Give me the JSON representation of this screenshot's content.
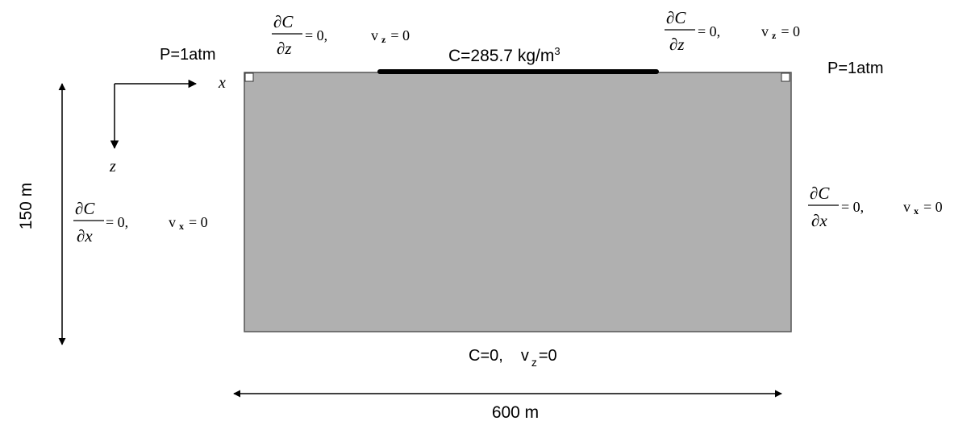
{
  "domain_colors": {
    "domain_fill": "#b0b0b0",
    "domain_stroke": "#555555",
    "source_strip": "#000000",
    "arrow": "#000000"
  },
  "top_left": {
    "pressure": "P=1atm",
    "dC": "∂C",
    "dz": "∂z",
    "cond_rest": "= 0,",
    "vel": "v",
    "vel_sub": "z",
    "vel_rest": "= 0"
  },
  "top_right": {
    "pressure": "P=1atm",
    "dC": "∂C",
    "dz": "∂z",
    "cond_rest": "= 0,",
    "vel": "v",
    "vel_sub": "z",
    "vel_rest": "= 0"
  },
  "source": {
    "label": "C=285.7 kg/m",
    "label_sup": "3"
  },
  "left_side": {
    "dC": "∂C",
    "dx": "∂x",
    "cond_rest": "= 0,",
    "vel": "v",
    "vel_sub": "x",
    "vel_rest": "= 0"
  },
  "right_side": {
    "dC": "∂C",
    "dx": "∂x",
    "cond_rest": "= 0,",
    "vel": "v",
    "vel_sub": "x",
    "vel_rest": "= 0"
  },
  "bottom": {
    "conc": "C=0,",
    "vel": "v",
    "vel_sub": "z",
    "vel_rest": "=0"
  },
  "axes": {
    "x_label": "x",
    "z_label": "z"
  },
  "dimensions": {
    "height": "150 m",
    "width": "600 m"
  }
}
